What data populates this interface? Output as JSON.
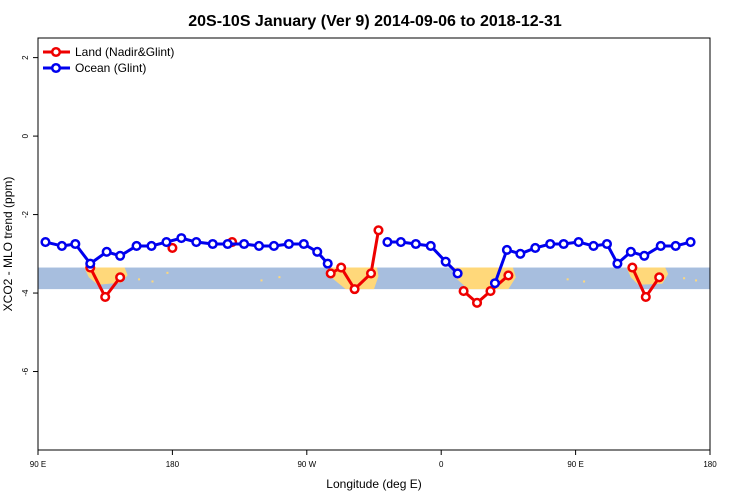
{
  "chart_data": {
    "type": "line",
    "title": "20S-10S January (Ver 9)   2014-09-06 to 2018-12-31",
    "xlabel": "Longitude (deg E)",
    "ylabel": "XCO2 - MLO trend (ppm)",
    "xlim": [
      90,
      540
    ],
    "ylim": [
      -8,
      2.5
    ],
    "xticks": [
      {
        "value": 90,
        "label": "90 E"
      },
      {
        "value": 180,
        "label": "180"
      },
      {
        "value": 270,
        "label": "90 W"
      },
      {
        "value": 360,
        "label": "0"
      },
      {
        "value": 450,
        "label": "90 E"
      },
      {
        "value": 540,
        "label": "180"
      }
    ],
    "yticks": [
      {
        "value": 2,
        "label": "2"
      },
      {
        "value": 0,
        "label": "0"
      },
      {
        "value": -2,
        "label": "-2"
      },
      {
        "value": -4,
        "label": "-4"
      },
      {
        "value": -6,
        "label": "-6"
      }
    ],
    "grid": false,
    "legend_position": "top-left",
    "map_strip": {
      "y_top": -3.35,
      "y_bottom": -3.9,
      "ocean_color": "#a7bede",
      "land_color": "#ffd87a"
    },
    "series": [
      {
        "name": "Land (Nadir&Glint)",
        "color": "#ee0000",
        "segments": [
          [
            [
              125,
              -3.35
            ],
            [
              135,
              -4.1
            ],
            [
              145,
              -3.6
            ]
          ],
          [
            [
              180,
              -2.85
            ]
          ],
          [
            [
              220,
              -2.7
            ]
          ],
          [
            [
              286,
              -3.5
            ],
            [
              293,
              -3.35
            ],
            [
              302,
              -3.9
            ],
            [
              313,
              -3.5
            ],
            [
              318,
              -2.4
            ]
          ],
          [
            [
              375,
              -3.95
            ],
            [
              384,
              -4.25
            ],
            [
              393,
              -3.95
            ],
            [
              405,
              -3.55
            ]
          ],
          [
            [
              488,
              -3.35
            ],
            [
              497,
              -4.1
            ],
            [
              506,
              -3.6
            ]
          ]
        ]
      },
      {
        "name": "Ocean (Glint)",
        "color": "#0000ee",
        "segments": [
          [
            [
              95,
              -2.7
            ],
            [
              106,
              -2.8
            ],
            [
              115,
              -2.75
            ],
            [
              125,
              -3.25
            ],
            [
              136,
              -2.95
            ],
            [
              145,
              -3.05
            ],
            [
              156,
              -2.8
            ],
            [
              166,
              -2.8
            ],
            [
              176,
              -2.7
            ],
            [
              186,
              -2.6
            ],
            [
              196,
              -2.7
            ],
            [
              207,
              -2.75
            ],
            [
              217,
              -2.75
            ],
            [
              228,
              -2.75
            ],
            [
              238,
              -2.8
            ],
            [
              248,
              -2.8
            ],
            [
              258,
              -2.75
            ],
            [
              268,
              -2.75
            ],
            [
              277,
              -2.95
            ],
            [
              284,
              -3.25
            ]
          ],
          [
            [
              324,
              -2.7
            ],
            [
              333,
              -2.7
            ],
            [
              343,
              -2.75
            ],
            [
              353,
              -2.8
            ],
            [
              363,
              -3.2
            ],
            [
              371,
              -3.5
            ]
          ],
          [
            [
              396,
              -3.75
            ],
            [
              404,
              -2.9
            ],
            [
              413,
              -3.0
            ],
            [
              423,
              -2.85
            ],
            [
              433,
              -2.75
            ],
            [
              442,
              -2.75
            ],
            [
              452,
              -2.7
            ],
            [
              462,
              -2.8
            ],
            [
              471,
              -2.75
            ],
            [
              478,
              -3.25
            ],
            [
              487,
              -2.95
            ],
            [
              496,
              -3.05
            ],
            [
              507,
              -2.8
            ],
            [
              517,
              -2.8
            ],
            [
              527,
              -2.7
            ]
          ]
        ]
      }
    ]
  }
}
